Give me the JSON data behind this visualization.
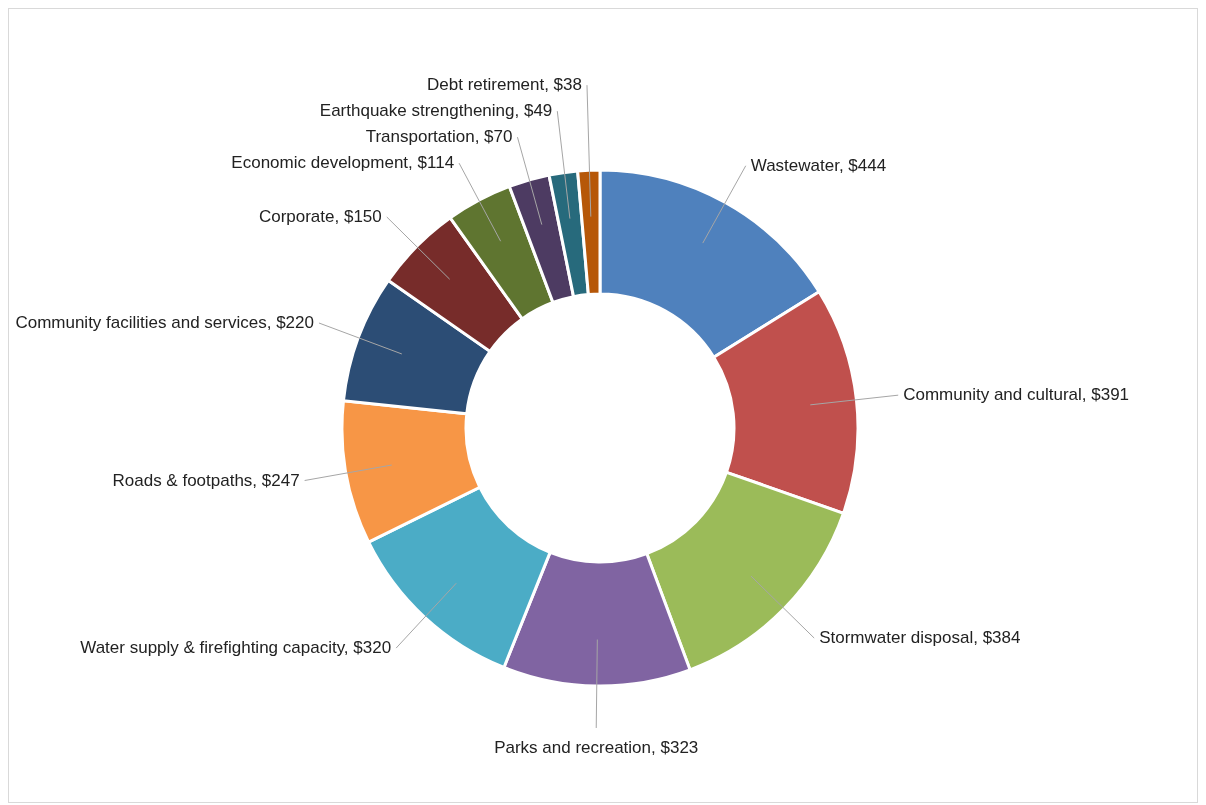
{
  "chart_data": {
    "type": "donut",
    "categories": [
      "Wastewater",
      "Community and cultural",
      "Stormwater disposal",
      "Parks and recreation",
      "Water supply & firefighting capacity",
      "Roads & footpaths",
      "Community facilities and services",
      "Corporate",
      "Economic development",
      "Transportation",
      "Earthquake strengthening",
      "Debt retirement"
    ],
    "values": [
      444,
      391,
      384,
      323,
      320,
      247,
      220,
      150,
      114,
      70,
      49,
      38
    ],
    "value_labels": [
      "$444",
      "$391",
      "$384",
      "$323",
      "$320",
      "$247",
      "$220",
      "$150",
      "$114",
      "$70",
      "$49",
      "$38"
    ],
    "colors": [
      "#4f81bd",
      "#c0504d",
      "#9bbb59",
      "#8064a2",
      "#4bacc6",
      "#f79646",
      "#2c4d75",
      "#772c2a",
      "#5f7530",
      "#4d3b62",
      "#276a7c",
      "#b65708"
    ]
  }
}
